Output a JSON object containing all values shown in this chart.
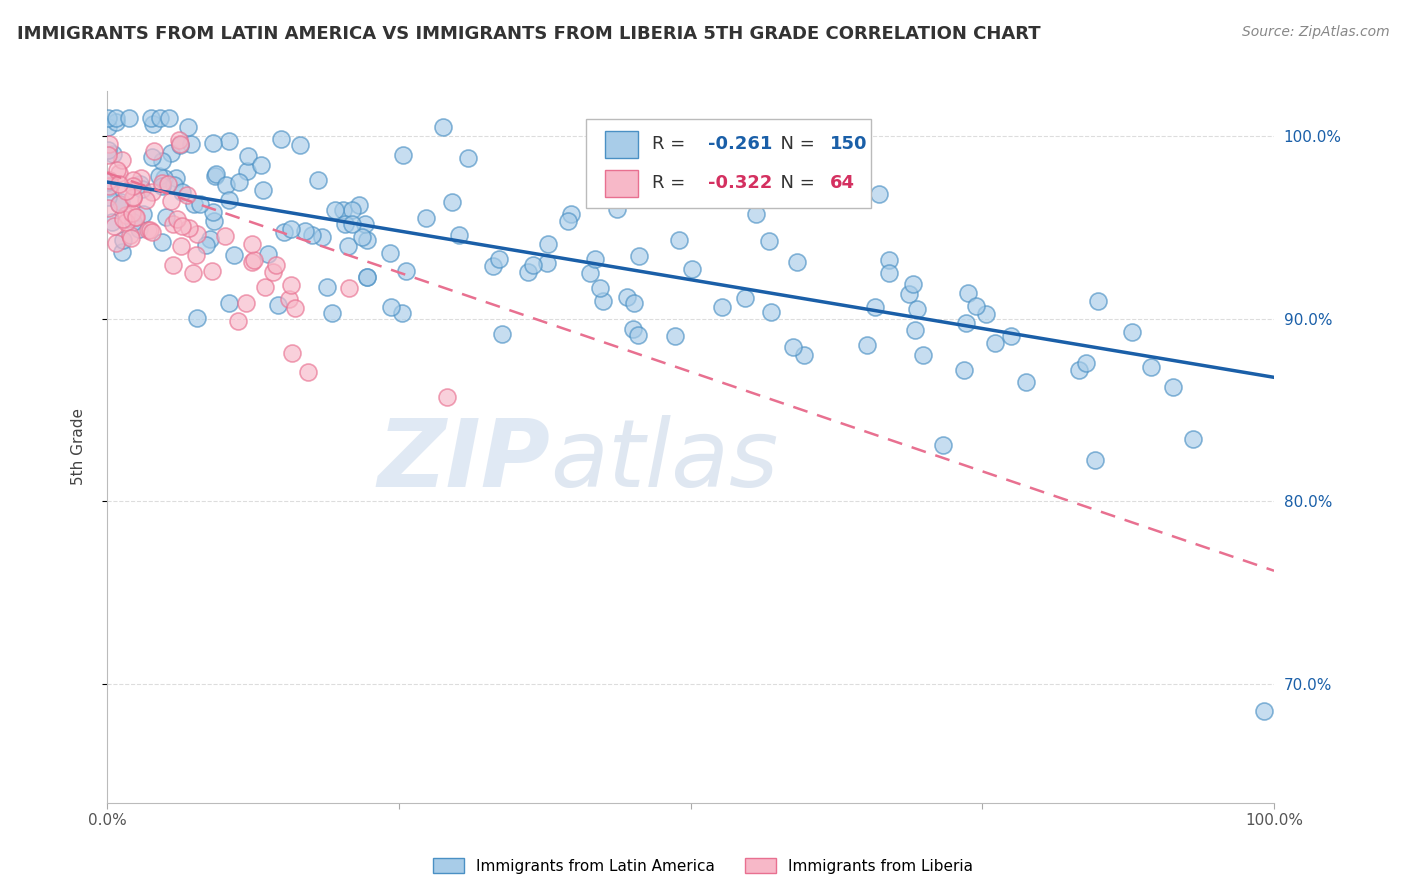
{
  "title": "IMMIGRANTS FROM LATIN AMERICA VS IMMIGRANTS FROM LIBERIA 5TH GRADE CORRELATION CHART",
  "source": "Source: ZipAtlas.com",
  "ylabel": "5th Grade",
  "R_blue": -0.261,
  "N_blue": 150,
  "R_pink": -0.322,
  "N_pink": 64,
  "legend_label_blue": "Immigrants from Latin America",
  "legend_label_pink": "Immigrants from Liberia",
  "xlim": [
    0.0,
    1.0
  ],
  "ylim": [
    0.635,
    1.025
  ],
  "yticks": [
    0.7,
    0.8,
    0.9,
    1.0
  ],
  "ytick_labels": [
    "70.0%",
    "80.0%",
    "90.0%",
    "100.0%"
  ],
  "background_color": "#ffffff",
  "blue_scatter_color": "#a8cce8",
  "blue_edge_color": "#4a90c4",
  "blue_line_color": "#1a5fa8",
  "pink_scatter_color": "#f7b8c8",
  "pink_edge_color": "#e87090",
  "pink_line_color": "#d43060",
  "watermark_zip": "ZIP",
  "watermark_atlas": "atlas",
  "grid_color": "#dddddd",
  "title_fontsize": 13,
  "source_fontsize": 10,
  "tick_fontsize": 11,
  "ylabel_fontsize": 11,
  "legend_fontsize": 13,
  "blue_line_start_y": 0.975,
  "blue_line_end_y": 0.868,
  "pink_line_start_y": 0.98,
  "pink_line_end_y": 0.762
}
